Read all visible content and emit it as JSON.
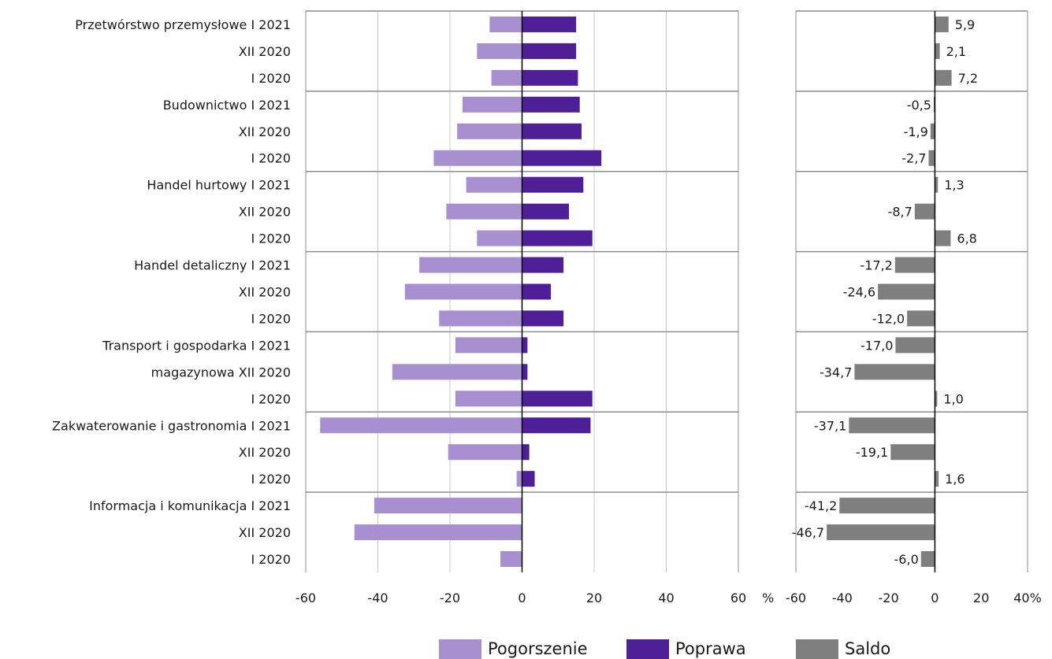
{
  "chart_data": [
    {
      "type": "bar",
      "orientation": "horizontal",
      "categories": [
        "Przetwórstwo przemysłowe I 2021",
        "XII 2020",
        "I 2020",
        "Budownictwo I 2021",
        "XII 2020",
        "I 2020",
        "Handel hurtowy I 2021",
        "XII 2020",
        "I 2020",
        "Handel detaliczny I 2021",
        "XII 2020",
        "I 2020",
        "Transport i gospodarka I 2021",
        "magazynowa  XII 2020",
        "I 2020",
        "Zakwaterowanie i gastronomia I 2021",
        "XII 2020",
        "I 2020",
        "Informacja i komunikacja I 2021",
        "XII 2020",
        "I 2020"
      ],
      "series": [
        {
          "name": "Pogorszenie",
          "color": "#a88fd0",
          "values": [
            -9,
            -12.5,
            -8.5,
            -16.5,
            -18,
            -24.5,
            -15.5,
            -21,
            -12.5,
            -28.5,
            -32.5,
            -23,
            -18.5,
            -36,
            -18.5,
            -56,
            -20.5,
            -1.5,
            -41,
            -46.5,
            -6
          ]
        },
        {
          "name": "Poprawa",
          "color": "#4e1f97",
          "values": [
            15,
            15,
            15.5,
            16,
            16.5,
            22,
            17,
            13,
            19.5,
            11.5,
            8,
            11.5,
            1.5,
            1.5,
            19.5,
            19,
            2,
            3.5,
            0,
            0,
            0
          ]
        }
      ],
      "xlim": [
        -60,
        60
      ],
      "xticks": [
        "-60",
        "-40",
        "-20",
        "0",
        "20",
        "40",
        "60"
      ],
      "x_unit": "%",
      "grid": "vertical",
      "group_size": 3
    },
    {
      "type": "bar",
      "orientation": "horizontal",
      "series": [
        {
          "name": "Saldo",
          "color": "#7f7f7f",
          "values": [
            5.9,
            2.1,
            7.2,
            -0.5,
            -1.9,
            -2.7,
            1.3,
            -8.7,
            6.8,
            -17.2,
            -24.6,
            -12.0,
            -17.0,
            -34.7,
            1.0,
            -37.1,
            -19.1,
            1.6,
            -41.2,
            -46.7,
            -6.0
          ],
          "labels": [
            "5,9",
            "2,1",
            "7,2",
            "-0,5",
            "-1,9",
            "-2,7",
            "1,3",
            "-8,7",
            "6,8",
            "-17,2",
            "-24,6",
            "-12,0",
            "-17,0",
            "-34,7",
            "1,0",
            "-37,1",
            "-19,1",
            "1,6",
            "-41,2",
            "-46,7",
            "-6,0"
          ]
        }
      ],
      "xlim": [
        -60,
        40
      ],
      "xticks": [
        "-60",
        "-40",
        "-20",
        "0",
        "20",
        "40%"
      ],
      "grid": "none",
      "group_size": 3
    }
  ],
  "legend": [
    {
      "label": "Pogorszenie",
      "color": "#a88fd0"
    },
    {
      "label": "Poprawa",
      "color": "#4e1f97"
    },
    {
      "label": "Saldo",
      "color": "#7f7f7f"
    }
  ]
}
